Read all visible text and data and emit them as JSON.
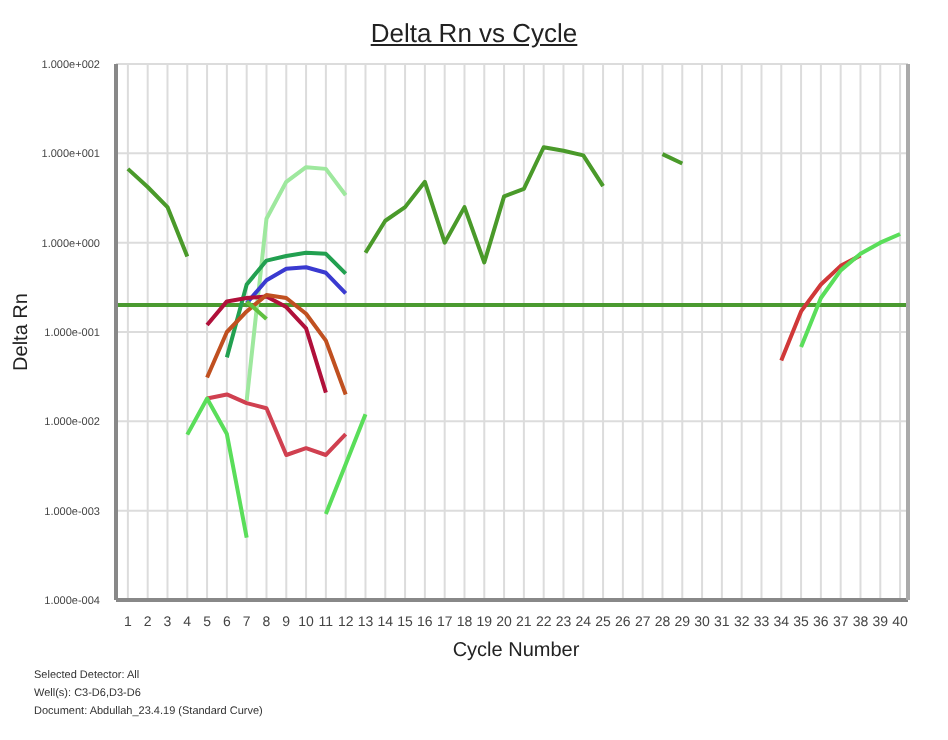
{
  "chart_data": {
    "type": "line",
    "title": "Delta Rn vs Cycle",
    "xlabel": "Cycle Number",
    "ylabel": "Delta Rn",
    "annotations": [
      "Selected Detector: All",
      "Well(s): C3-D6,D3-D6",
      "Document: Abdullah_23.4.19 (Standard Curve)"
    ],
    "log": "y",
    "grid": true,
    "marker": "none",
    "line_style": "solid",
    "xlim": [
      0.4,
      40.4
    ],
    "xticks": [
      1,
      2,
      3,
      4,
      5,
      6,
      7,
      8,
      9,
      10,
      11,
      12,
      13,
      14,
      15,
      16,
      17,
      18,
      19,
      20,
      21,
      22,
      23,
      24,
      25,
      26,
      27,
      28,
      29,
      30,
      31,
      32,
      33,
      34,
      35,
      36,
      37,
      38,
      39,
      40
    ],
    "ylim": [
      0.0001,
      100
    ],
    "yticks": [
      {
        "value": 0.0001,
        "label": "1.000e-004"
      },
      {
        "value": 0.001,
        "label": "1.000e-003"
      },
      {
        "value": 0.01,
        "label": "1.000e-002"
      },
      {
        "value": 0.1,
        "label": "1.000e-001"
      },
      {
        "value": 1,
        "label": "1.000e+000"
      },
      {
        "value": 10,
        "label": "1.000e+001"
      },
      {
        "value": 100,
        "label": "1.000e+002"
      }
    ],
    "ref_lines": [
      {
        "axis": "y",
        "value": 0.2,
        "color": "#4a9a30"
      }
    ],
    "series": [
      {
        "color": "#4a9a2a",
        "x": [
          1,
          2,
          3,
          4,
          5,
          13,
          14,
          15,
          16,
          17,
          18,
          19,
          20,
          21,
          22,
          23,
          24,
          25,
          26,
          28,
          29
        ],
        "values": [
          6.7,
          4.2,
          2.5,
          0.7,
          null,
          0.77,
          1.76,
          2.5,
          4.8,
          1.0,
          2.5,
          0.6,
          3.3,
          4.0,
          11.7,
          10.7,
          9.5,
          4.3,
          null,
          9.8,
          7.7
        ]
      },
      {
        "color": "#9ee89e",
        "x": [
          7,
          8,
          9,
          10,
          11,
          12
        ],
        "values": [
          0.017,
          1.85,
          4.8,
          7.0,
          6.7,
          3.4
        ]
      },
      {
        "color": "#22a050",
        "x": [
          6,
          7,
          8,
          9,
          10,
          11,
          12
        ],
        "values": [
          0.052,
          0.34,
          0.63,
          0.71,
          0.77,
          0.75,
          0.45
        ]
      },
      {
        "color": "#3a3ad0",
        "x": [
          7,
          8,
          9,
          10,
          11,
          12
        ],
        "values": [
          0.21,
          0.38,
          0.51,
          0.53,
          0.46,
          0.27
        ]
      },
      {
        "color": "#b0103a",
        "x": [
          5,
          6,
          7,
          8,
          9,
          10,
          11
        ],
        "values": [
          0.12,
          0.22,
          0.24,
          0.25,
          0.19,
          0.11,
          0.021
        ]
      },
      {
        "color": "#c05020",
        "x": [
          5,
          6,
          7,
          8,
          9,
          10,
          11,
          12
        ],
        "values": [
          0.031,
          0.1,
          0.17,
          0.26,
          0.24,
          0.16,
          0.08,
          0.02
        ]
      },
      {
        "color": "#60c040",
        "x": [
          7,
          8
        ],
        "values": [
          0.22,
          0.14
        ]
      },
      {
        "color": "#d04050",
        "x": [
          5,
          6,
          7,
          8,
          9,
          10,
          11,
          12
        ],
        "values": [
          0.018,
          0.02,
          0.016,
          0.014,
          0.0042,
          0.005,
          0.0042,
          0.0072
        ]
      },
      {
        "color": "#5ade5a",
        "x": [
          4,
          5,
          6,
          7,
          8,
          11,
          12,
          13
        ],
        "values": [
          0.0071,
          0.018,
          0.0072,
          0.0005,
          null,
          0.00092,
          0.0033,
          0.012
        ]
      },
      {
        "color": "#d03838",
        "x": [
          34,
          35,
          36,
          37,
          38
        ],
        "values": [
          0.048,
          0.17,
          0.34,
          0.55,
          0.72
        ]
      },
      {
        "color": "#5ade5a",
        "x": [
          35,
          36,
          37,
          38,
          39,
          40
        ],
        "values": [
          0.068,
          0.24,
          0.49,
          0.75,
          1.0,
          1.25
        ]
      }
    ]
  }
}
